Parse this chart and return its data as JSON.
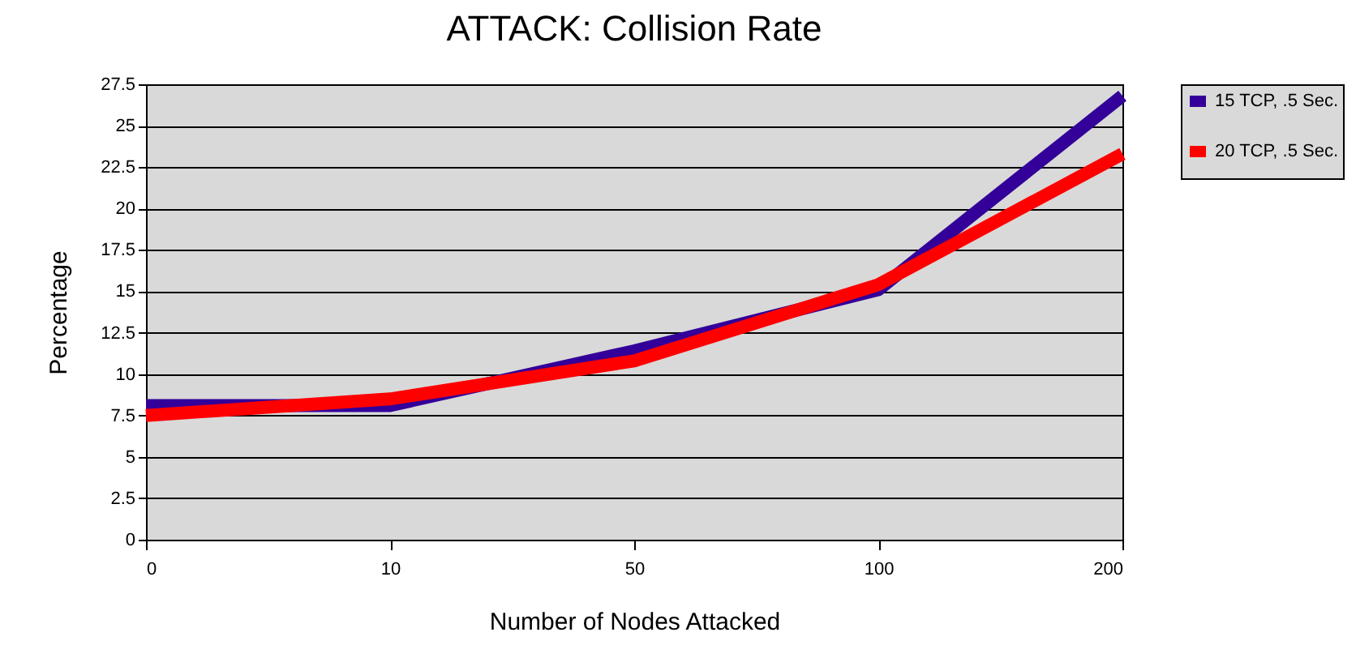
{
  "chart_data": {
    "type": "line",
    "title": "ATTACK: Collision Rate",
    "xlabel": "Number of Nodes Attacked",
    "ylabel": "Percentage",
    "categories": [
      "0",
      "10",
      "50",
      "100",
      "200"
    ],
    "series": [
      {
        "name": "15 TCP, .5 Sec.",
        "color": "#330099",
        "values": [
          8.1,
          8.1,
          11.4,
          15.1,
          26.8
        ]
      },
      {
        "name": "20 TCP, .5 Sec.",
        "color": "#ff0000",
        "values": [
          7.5,
          8.5,
          10.8,
          15.4,
          23.3
        ]
      }
    ],
    "ylim": [
      0,
      27.5
    ],
    "yticks": [
      0,
      2.5,
      5,
      7.5,
      10,
      12.5,
      15,
      17.5,
      20,
      22.5,
      25,
      27.5
    ],
    "grid": "y",
    "legend": "right",
    "marker": "none",
    "line_style": "solid"
  }
}
